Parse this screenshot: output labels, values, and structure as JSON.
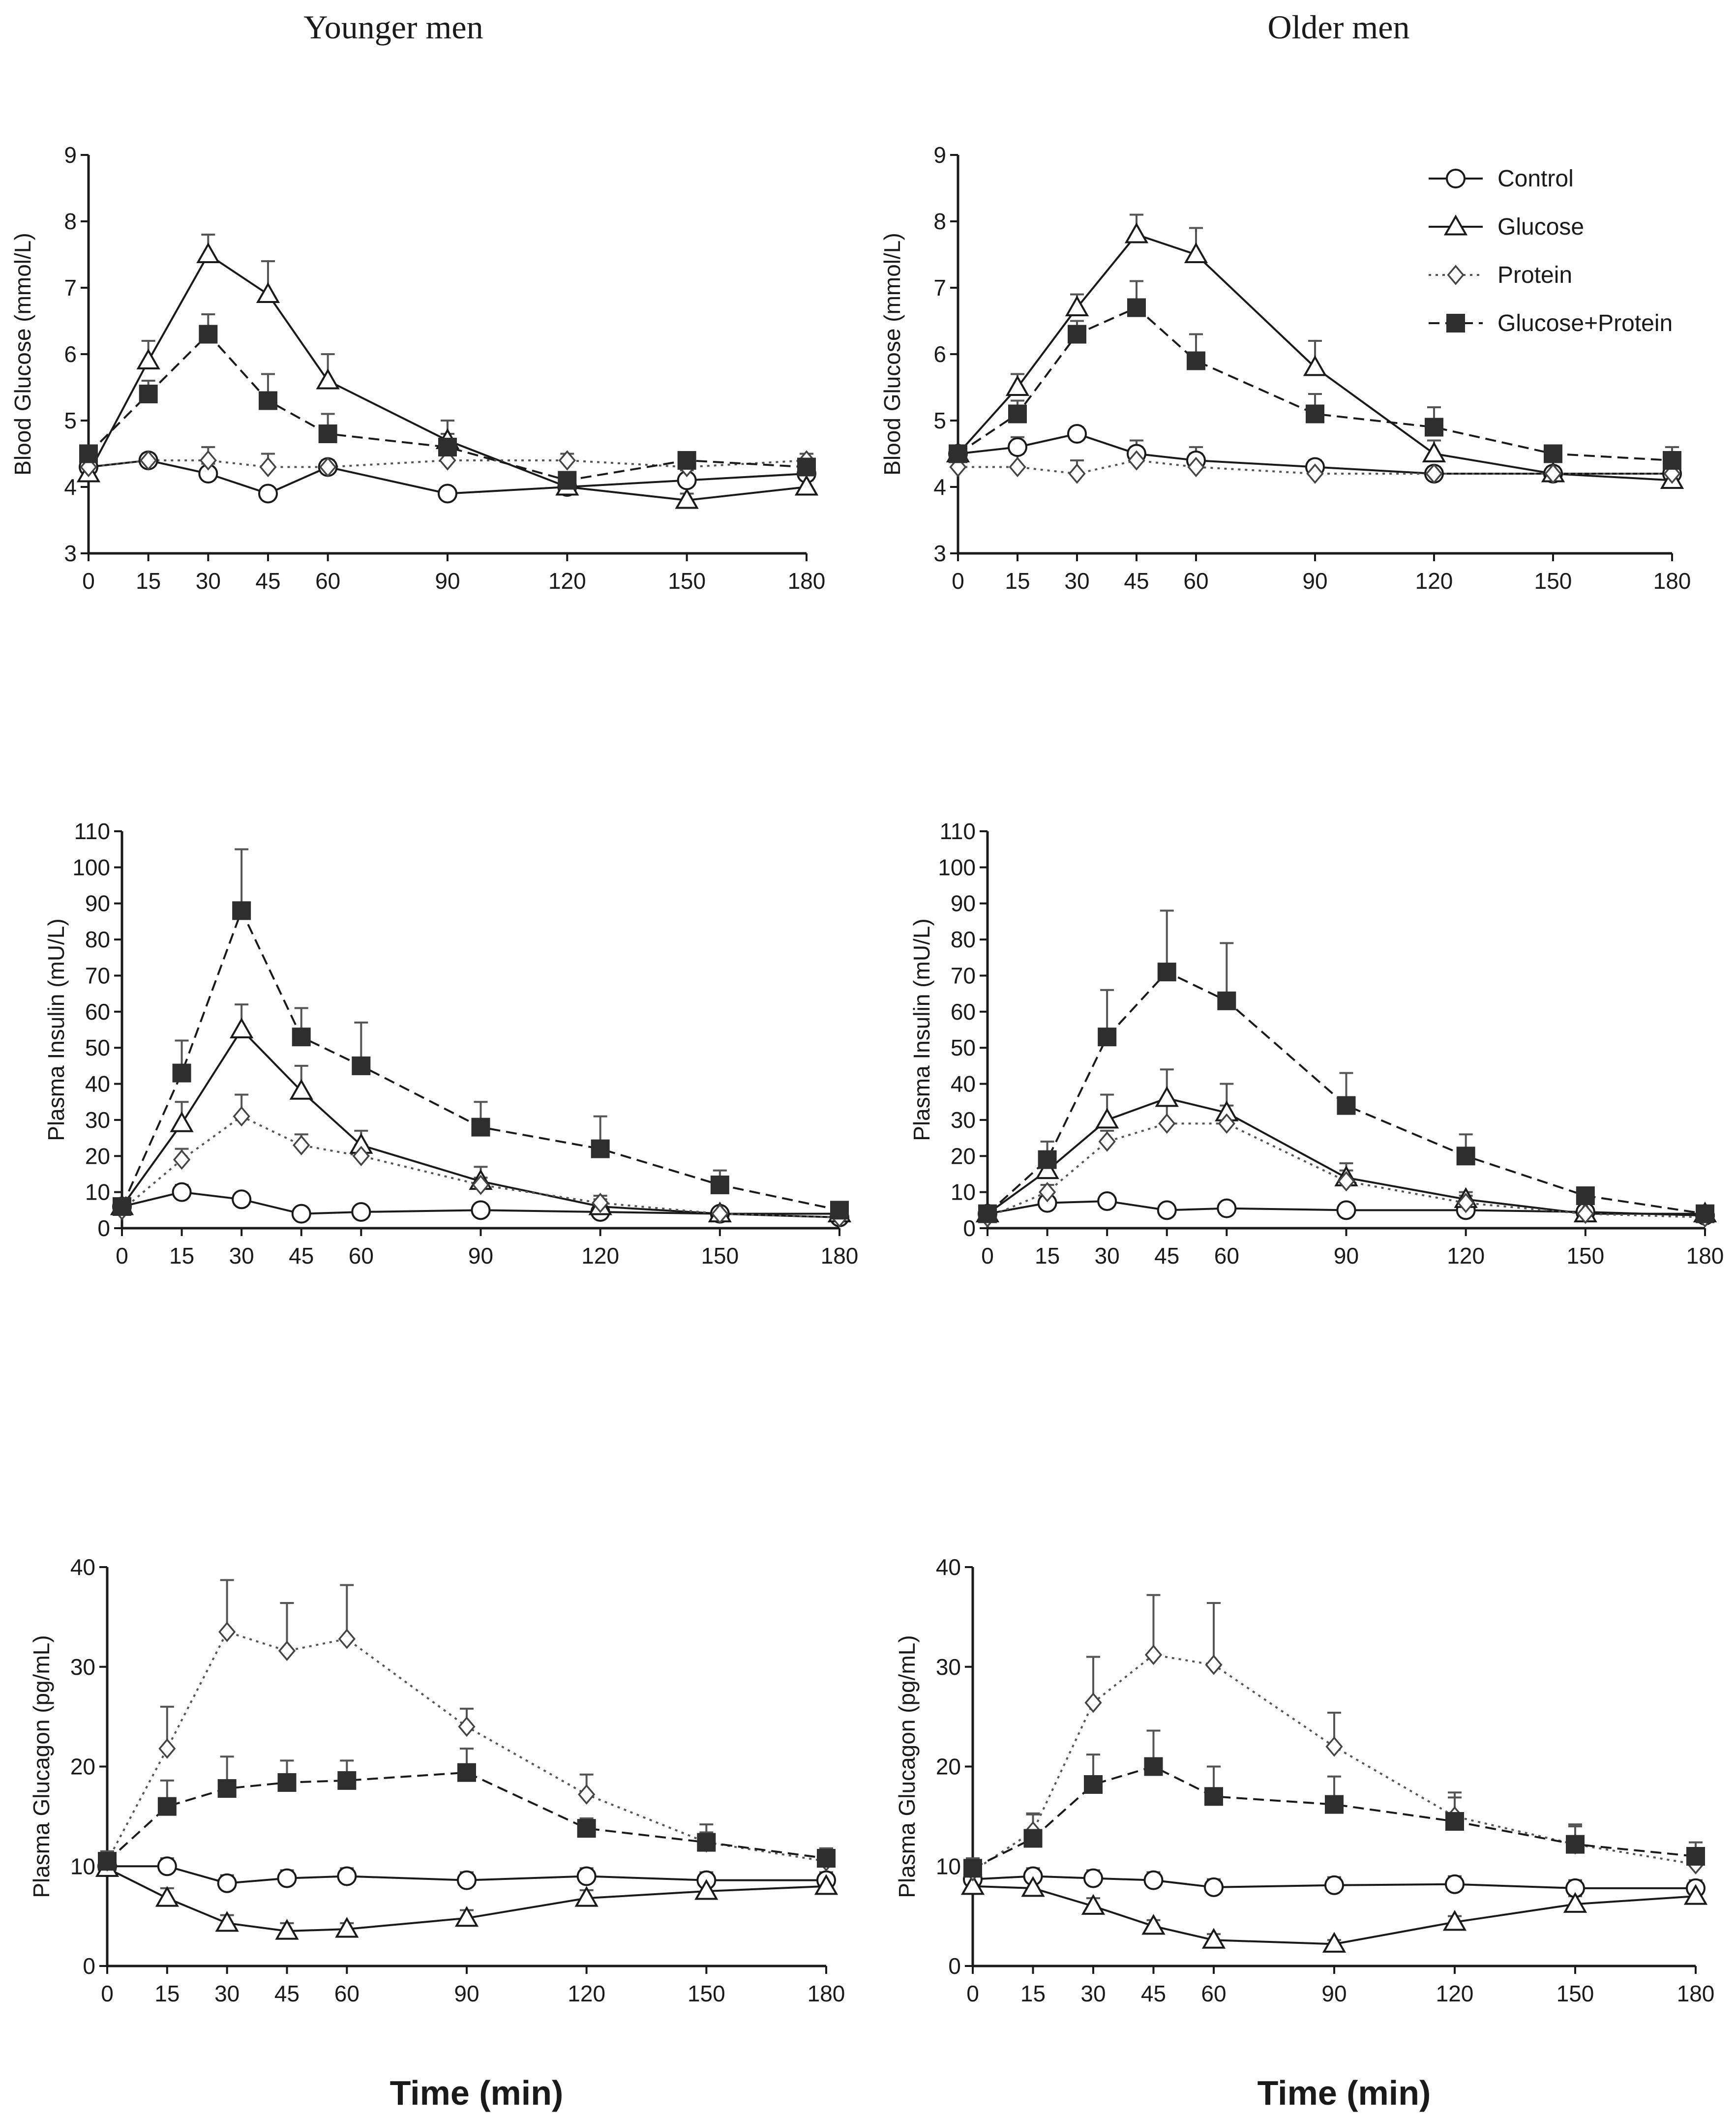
{
  "column_titles": [
    "Younger men",
    "Older men"
  ],
  "legend": {
    "items": [
      {
        "key": "control",
        "label": "Control"
      },
      {
        "key": "glucose",
        "label": "Glucose"
      },
      {
        "key": "protein",
        "label": "Protein"
      },
      {
        "key": "gp",
        "label": "Glucose+Protein"
      }
    ]
  },
  "colors": {
    "ink": "#1a1a1a",
    "filled_marker": "#2e2e2e",
    "error_bar": "#555555"
  },
  "chart_data": [
    {
      "type": "line",
      "panel": "younger-glucose",
      "column_title": "Younger men",
      "ylabel": "Blood Glucose (mmol/L)",
      "xlabel": "",
      "x": [
        0,
        15,
        30,
        45,
        60,
        90,
        120,
        150,
        180
      ],
      "xticks": [
        0,
        15,
        30,
        45,
        60,
        90,
        120,
        150,
        180
      ],
      "ylim": [
        3,
        9
      ],
      "yticks": [
        3,
        4,
        5,
        6,
        7,
        8,
        9
      ],
      "series": [
        {
          "name": "Control",
          "key": "control",
          "values": [
            4.3,
            4.4,
            4.2,
            3.9,
            4.3,
            3.9,
            4.0,
            4.1,
            4.2
          ],
          "errors": [
            0.1,
            0.1,
            0.15,
            0.05,
            0.1,
            0.05,
            0.1,
            0.15,
            0.1
          ]
        },
        {
          "name": "Glucose",
          "key": "glucose",
          "values": [
            4.2,
            5.9,
            7.5,
            6.9,
            5.6,
            4.7,
            4.0,
            3.8,
            4.0
          ],
          "errors": [
            0.1,
            0.3,
            0.3,
            0.5,
            0.4,
            0.3,
            0.1,
            0.1,
            0.1
          ]
        },
        {
          "name": "Protein",
          "key": "protein",
          "values": [
            4.3,
            4.4,
            4.4,
            4.3,
            4.3,
            4.4,
            4.4,
            4.3,
            4.4
          ],
          "errors": [
            0.1,
            0.1,
            0.2,
            0.2,
            0.1,
            0.1,
            0.1,
            0.1,
            0.1
          ]
        },
        {
          "name": "Glucose+Protein",
          "key": "gp",
          "values": [
            4.5,
            5.4,
            6.3,
            5.3,
            4.8,
            4.6,
            4.1,
            4.4,
            4.3
          ],
          "errors": [
            0.1,
            0.2,
            0.3,
            0.4,
            0.3,
            0.2,
            0.1,
            0.1,
            0.1
          ]
        }
      ]
    },
    {
      "type": "line",
      "panel": "older-glucose",
      "column_title": "Older men",
      "ylabel": "Blood Glucose (mmol/L)",
      "xlabel": "",
      "x": [
        0,
        15,
        30,
        45,
        60,
        90,
        120,
        150,
        180
      ],
      "xticks": [
        0,
        15,
        30,
        45,
        60,
        90,
        120,
        150,
        180
      ],
      "ylim": [
        3,
        9
      ],
      "yticks": [
        3,
        4,
        5,
        6,
        7,
        8,
        9
      ],
      "series": [
        {
          "name": "Control",
          "key": "control",
          "values": [
            4.5,
            4.6,
            4.8,
            4.5,
            4.4,
            4.3,
            4.2,
            4.2,
            4.2
          ],
          "errors": [
            0.1,
            0.15,
            0.1,
            0.2,
            0.2,
            0.1,
            0.1,
            0.1,
            0.1
          ]
        },
        {
          "name": "Glucose",
          "key": "glucose",
          "values": [
            4.5,
            5.5,
            6.7,
            7.8,
            7.5,
            5.8,
            4.5,
            4.2,
            4.1
          ],
          "errors": [
            0.1,
            0.2,
            0.2,
            0.3,
            0.4,
            0.4,
            0.2,
            0.1,
            0.1
          ]
        },
        {
          "name": "Protein",
          "key": "protein",
          "values": [
            4.3,
            4.3,
            4.2,
            4.4,
            4.3,
            4.2,
            4.2,
            4.2,
            4.2
          ],
          "errors": [
            0.1,
            0.2,
            0.2,
            0.2,
            0.2,
            0.2,
            0.1,
            0.1,
            0.1
          ]
        },
        {
          "name": "Glucose+Protein",
          "key": "gp",
          "values": [
            4.5,
            5.1,
            6.3,
            6.7,
            5.9,
            5.1,
            4.9,
            4.5,
            4.4
          ],
          "errors": [
            0.1,
            0.2,
            0.2,
            0.4,
            0.4,
            0.3,
            0.3,
            0.1,
            0.2
          ]
        }
      ]
    },
    {
      "type": "line",
      "panel": "younger-insulin",
      "column_title": "Younger men",
      "ylabel": "Plasma Insulin (mU/L)",
      "xlabel": "",
      "x": [
        0,
        15,
        30,
        45,
        60,
        90,
        120,
        150,
        180
      ],
      "xticks": [
        0,
        15,
        30,
        45,
        60,
        90,
        120,
        150,
        180
      ],
      "ylim": [
        0,
        110
      ],
      "yticks": [
        0,
        10,
        20,
        30,
        40,
        50,
        60,
        70,
        80,
        90,
        100,
        110
      ],
      "series": [
        {
          "name": "Control",
          "key": "control",
          "values": [
            6,
            10,
            8,
            4,
            4.5,
            5,
            4.5,
            4,
            3
          ],
          "errors": [
            1,
            2,
            1.5,
            1,
            1,
            1,
            1,
            1,
            0.5
          ]
        },
        {
          "name": "Glucose",
          "key": "glucose",
          "values": [
            6,
            29,
            55,
            38,
            23,
            13,
            6,
            4,
            4
          ],
          "errors": [
            1,
            6,
            7,
            7,
            4,
            4,
            2,
            1,
            1
          ]
        },
        {
          "name": "Protein",
          "key": "protein",
          "values": [
            5,
            19,
            31,
            23,
            20,
            12,
            7,
            4,
            3
          ],
          "errors": [
            1,
            3,
            6,
            3,
            3,
            2,
            2,
            1,
            1
          ]
        },
        {
          "name": "Glucose+Protein",
          "key": "gp",
          "values": [
            6,
            43,
            88,
            53,
            45,
            28,
            22,
            12,
            5
          ],
          "errors": [
            1,
            9,
            17,
            8,
            12,
            7,
            9,
            4,
            1
          ]
        }
      ]
    },
    {
      "type": "line",
      "panel": "older-insulin",
      "column_title": "Older men",
      "ylabel": "Plasma Insulin (mU/L)",
      "xlabel": "",
      "x": [
        0,
        15,
        30,
        45,
        60,
        90,
        120,
        150,
        180
      ],
      "xticks": [
        0,
        15,
        30,
        45,
        60,
        90,
        120,
        150,
        180
      ],
      "ylim": [
        0,
        110
      ],
      "yticks": [
        0,
        10,
        20,
        30,
        40,
        50,
        60,
        70,
        80,
        90,
        100,
        110
      ],
      "series": [
        {
          "name": "Control",
          "key": "control",
          "values": [
            4,
            7,
            7.5,
            5,
            5.5,
            5,
            5,
            4.5,
            3.5
          ],
          "errors": [
            1,
            1.5,
            1.5,
            1,
            1,
            1,
            1,
            1,
            0.5
          ]
        },
        {
          "name": "Glucose",
          "key": "glucose",
          "values": [
            4,
            16,
            30,
            36,
            32,
            14,
            8,
            4,
            4
          ],
          "errors": [
            1,
            3,
            7,
            8,
            8,
            4,
            2,
            1,
            1
          ]
        },
        {
          "name": "Protein",
          "key": "protein",
          "values": [
            3,
            10,
            24,
            29,
            29,
            13,
            7,
            4,
            3
          ],
          "errors": [
            1,
            2,
            3,
            5,
            5,
            3,
            2,
            1,
            1
          ]
        },
        {
          "name": "Glucose+Protein",
          "key": "gp",
          "values": [
            4,
            19,
            53,
            71,
            63,
            34,
            20,
            9,
            4
          ],
          "errors": [
            1,
            5,
            13,
            17,
            16,
            9,
            6,
            2,
            1
          ]
        }
      ]
    },
    {
      "type": "line",
      "panel": "younger-glucagon",
      "column_title": "Younger men",
      "ylabel": "Plasma Glucagon (pg/mL)",
      "xlabel": "Time (min)",
      "x": [
        0,
        15,
        30,
        45,
        60,
        90,
        120,
        150,
        180
      ],
      "xticks": [
        0,
        15,
        30,
        45,
        60,
        90,
        120,
        150,
        180
      ],
      "ylim": [
        0,
        40
      ],
      "yticks": [
        0,
        10,
        20,
        30,
        40
      ],
      "series": [
        {
          "name": "Control",
          "key": "control",
          "values": [
            10,
            10,
            8.3,
            8.8,
            9,
            8.6,
            9,
            8.6,
            8.6
          ],
          "errors": [
            1,
            0.8,
            0.8,
            0.8,
            0.8,
            0.8,
            0.8,
            0.8,
            0.8
          ]
        },
        {
          "name": "Glucose",
          "key": "glucose",
          "values": [
            9.8,
            6.8,
            4.3,
            3.5,
            3.7,
            4.8,
            6.8,
            7.5,
            8
          ],
          "errors": [
            1,
            1,
            0.8,
            0.8,
            0.6,
            0.8,
            0.8,
            0.6,
            0.6
          ]
        },
        {
          "name": "Protein",
          "key": "protein",
          "values": [
            10.5,
            21.8,
            33.5,
            31.6,
            32.8,
            24,
            17.2,
            12.4,
            10.5
          ],
          "errors": [
            1,
            4.2,
            5.2,
            4.8,
            5.4,
            1.8,
            2,
            1.8,
            1.2
          ]
        },
        {
          "name": "Glucose+Protein",
          "key": "gp",
          "values": [
            10.5,
            16,
            17.8,
            18.4,
            18.6,
            19.4,
            13.8,
            12.4,
            10.8
          ],
          "errors": [
            1,
            2.6,
            3.2,
            2.2,
            2,
            2.4,
            1,
            1,
            1
          ]
        }
      ]
    },
    {
      "type": "line",
      "panel": "older-glucagon",
      "column_title": "Older men",
      "ylabel": "Plasma Glucagon (pg/mL)",
      "xlabel": "Time (min)",
      "x": [
        0,
        15,
        30,
        45,
        60,
        90,
        120,
        150,
        180
      ],
      "xticks": [
        0,
        15,
        30,
        45,
        60,
        90,
        120,
        150,
        180
      ],
      "ylim": [
        0,
        40
      ],
      "yticks": [
        0,
        10,
        20,
        30,
        40
      ],
      "series": [
        {
          "name": "Control",
          "key": "control",
          "values": [
            8.7,
            9,
            8.8,
            8.6,
            7.9,
            8.1,
            8.2,
            7.8,
            7.8
          ],
          "errors": [
            0.8,
            0.8,
            0.8,
            0.8,
            0.8,
            0.8,
            0.8,
            0.8,
            0.8
          ]
        },
        {
          "name": "Glucose",
          "key": "glucose",
          "values": [
            8,
            7.8,
            6,
            4,
            2.6,
            2.2,
            4.4,
            6.2,
            7
          ],
          "errors": [
            0.8,
            0.8,
            0.8,
            0.6,
            0.6,
            0.4,
            0.6,
            0.8,
            0.8
          ]
        },
        {
          "name": "Protein",
          "key": "protein",
          "values": [
            9.5,
            13.5,
            26.4,
            31.2,
            30.2,
            22,
            15,
            12.2,
            10.2
          ],
          "errors": [
            1,
            1.8,
            4.6,
            6,
            6.2,
            3.4,
            2.4,
            2,
            1.6
          ]
        },
        {
          "name": "Glucose+Protein",
          "key": "gp",
          "values": [
            9.8,
            12.8,
            18.2,
            20,
            17,
            16.2,
            14.5,
            12.2,
            11
          ],
          "errors": [
            1,
            2.4,
            3,
            3.6,
            3,
            2.8,
            2.4,
            1.8,
            1.4
          ]
        }
      ]
    }
  ]
}
